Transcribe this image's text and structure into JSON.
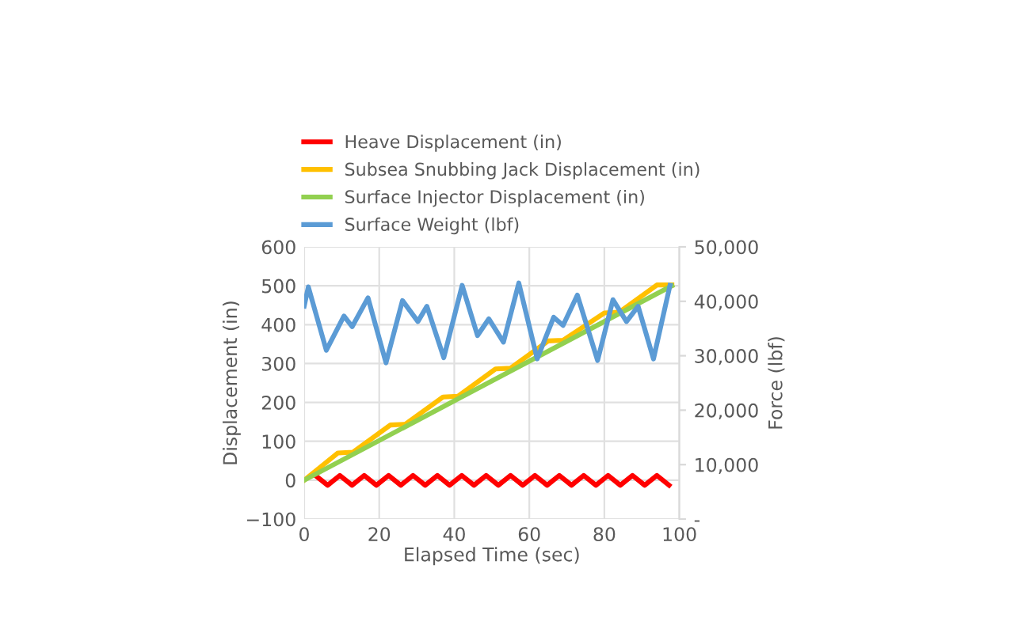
{
  "chart_data": {
    "type": "line",
    "xlabel": "Elapsed Time (sec)",
    "ylabel": "Displacement (in)",
    "y2label": "Force (lbf)",
    "xlim": [
      0,
      100
    ],
    "xticks": [
      0,
      20,
      40,
      60,
      80,
      100
    ],
    "ylim": [
      -100,
      600
    ],
    "yticks": [
      -100,
      0,
      100,
      200,
      300,
      400,
      500,
      600
    ],
    "y2lim": [
      0,
      50000
    ],
    "y2ticks": [
      {
        "value": 0,
        "label": "-"
      },
      {
        "value": 10000,
        "label": "10,000"
      },
      {
        "value": 20000,
        "label": "20,000"
      },
      {
        "value": 30000,
        "label": "30,000"
      },
      {
        "value": 40000,
        "label": "40,000"
      },
      {
        "value": 50000,
        "label": "50,000"
      }
    ],
    "grid": true,
    "legend": "top left",
    "marker": "none",
    "line_style": "solid",
    "series": [
      {
        "name": "Heave Displacement (in)",
        "color": "#ff0000",
        "x": [
          3,
          6.25,
          9.5,
          12.75,
          16,
          19.25,
          22.5,
          25.75,
          29,
          32.25,
          35.5,
          38.75,
          42,
          45.25,
          48.5,
          51.75,
          55,
          58.25,
          61.5,
          64.75,
          68,
          71.25,
          74.5,
          77.75,
          81,
          84.25,
          87.5,
          90.75,
          94,
          97.25
        ],
        "values": [
          12,
          -13,
          12,
          -13,
          12,
          -13,
          12,
          -13,
          12,
          -13,
          12,
          -13,
          12,
          -13,
          12,
          -13,
          12,
          -13,
          12,
          -13,
          12,
          -13,
          12,
          -13,
          12,
          -13,
          12,
          -13,
          12,
          -13
        ]
      },
      {
        "name": "Subsea Snubbing Jack Displacement (in)",
        "color": "#ffc000",
        "x": [
          0,
          9,
          13,
          23,
          27,
          37,
          41,
          51,
          55,
          65,
          69,
          80,
          84,
          94,
          98
        ],
        "values": [
          0,
          70,
          72,
          142,
          144,
          214,
          216,
          286,
          288,
          358,
          360,
          430,
          432,
          502,
          502
        ]
      },
      {
        "name": "Surface Injector Displacement (in)",
        "color": "#92d050",
        "x": [
          0,
          98
        ],
        "values": [
          0,
          500
        ]
      },
      {
        "name": "Surface Weight (lbf)",
        "color": "#5b9bd5",
        "axis": "y2",
        "x": [
          0,
          1.1,
          5.9,
          10.6,
          12.8,
          17,
          21.8,
          26.2,
          30.3,
          32.7,
          37.2,
          42.1,
          46.2,
          49.2,
          53.1,
          57.2,
          62.1,
          66.5,
          69,
          72.8,
          78.2,
          82.3,
          85.9,
          89,
          93.1,
          97.5
        ],
        "values": [
          39100,
          42650,
          31000,
          37300,
          35350,
          40640,
          28700,
          40140,
          36280,
          39080,
          29650,
          42930,
          33710,
          36780,
          32500,
          43360,
          29430,
          37070,
          35570,
          41140,
          29140,
          40290,
          36280,
          39080,
          29430,
          42930
        ]
      }
    ]
  }
}
